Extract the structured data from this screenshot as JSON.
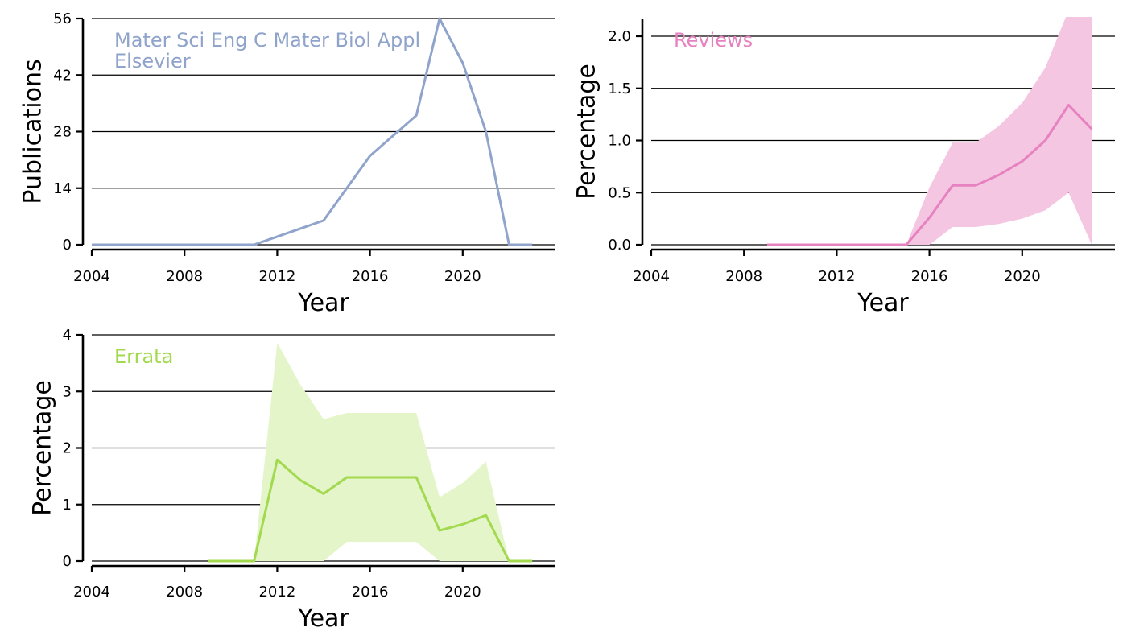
{
  "colors": {
    "publications": "#8fa3cb",
    "reviews": "#e582bf",
    "reviews_band": "#f4c6e2",
    "errata": "#a3d94f",
    "errata_band": "#e4f5c9"
  },
  "chart_data": [
    {
      "id": "publications",
      "type": "line",
      "xlabel": "Year",
      "ylabel": "Publications",
      "xlim": [
        2004,
        2024
      ],
      "ylim": [
        0,
        56
      ],
      "xticks": [
        2004,
        2008,
        2012,
        2016,
        2020
      ],
      "yticks": [
        0,
        14,
        28,
        42,
        56
      ],
      "ytick_labels": [
        "0",
        "14",
        "28",
        "42",
        "56"
      ],
      "grid": "y",
      "annotation": [
        "Mater Sci Eng C Mater Biol Appl",
        "Elsevier"
      ],
      "series": [
        {
          "x": [
            2004,
            2005,
            2006,
            2007,
            2008,
            2009,
            2010,
            2011,
            2012,
            2013,
            2014,
            2015,
            2016,
            2017,
            2018,
            2019,
            2020,
            2021,
            2022,
            2023
          ],
          "y": [
            0,
            0,
            0,
            0,
            0,
            0,
            0,
            0,
            2,
            4,
            6,
            14,
            22,
            27,
            32,
            56,
            45,
            28,
            0,
            0
          ]
        }
      ]
    },
    {
      "id": "reviews",
      "type": "line",
      "xlabel": "Year",
      "ylabel": "Percentage",
      "xlim": [
        2004,
        2024
      ],
      "ylim": [
        0,
        2.17
      ],
      "xticks": [
        2004,
        2008,
        2012,
        2016,
        2020
      ],
      "yticks": [
        0,
        0.5,
        1.0,
        1.5,
        2.0
      ],
      "ytick_labels": [
        "0.0",
        "0.5",
        "1.0",
        "1.5",
        "2.0"
      ],
      "grid": "y",
      "annotation": [
        "Reviews"
      ],
      "series": [
        {
          "x": [
            2009,
            2010,
            2011,
            2012,
            2013,
            2014,
            2015,
            2016,
            2017,
            2018,
            2019,
            2020,
            2021,
            2022,
            2023
          ],
          "y": [
            0,
            0,
            0,
            0,
            0,
            0,
            0,
            0.26,
            0.57,
            0.57,
            0.67,
            0.8,
            1.0,
            1.34,
            1.11
          ],
          "lower": [
            0,
            0,
            0,
            0,
            0,
            0,
            0,
            0,
            0.17,
            0.17,
            0.2,
            0.25,
            0.33,
            0.5,
            0
          ],
          "upper": [
            0,
            0,
            0,
            0,
            0,
            0,
            0,
            0.55,
            0.98,
            0.98,
            1.14,
            1.36,
            1.7,
            2.25,
            2.25
          ]
        }
      ]
    },
    {
      "id": "errata",
      "type": "line",
      "xlabel": "Year",
      "ylabel": "Percentage",
      "xlim": [
        2004,
        2024
      ],
      "ylim": [
        0,
        4
      ],
      "xticks": [
        2004,
        2008,
        2012,
        2016,
        2020
      ],
      "yticks": [
        0,
        1,
        2,
        3,
        4
      ],
      "ytick_labels": [
        "0",
        "1",
        "2",
        "3",
        "4"
      ],
      "grid": "y",
      "annotation": [
        "Errata"
      ],
      "series": [
        {
          "x": [
            2009,
            2010,
            2011,
            2012,
            2013,
            2014,
            2015,
            2016,
            2017,
            2018,
            2019,
            2020,
            2021,
            2022,
            2023
          ],
          "y": [
            0,
            0,
            0,
            1.79,
            1.43,
            1.19,
            1.48,
            1.48,
            1.48,
            1.48,
            0.54,
            0.65,
            0.81,
            0,
            0
          ],
          "lower": [
            0,
            0,
            0,
            0,
            0,
            0,
            0.34,
            0.34,
            0.34,
            0.34,
            0,
            0,
            0,
            0,
            0
          ],
          "upper": [
            0,
            0,
            0,
            3.86,
            3.12,
            2.51,
            2.62,
            2.62,
            2.62,
            2.62,
            1.13,
            1.38,
            1.76,
            0,
            0
          ]
        }
      ]
    }
  ]
}
